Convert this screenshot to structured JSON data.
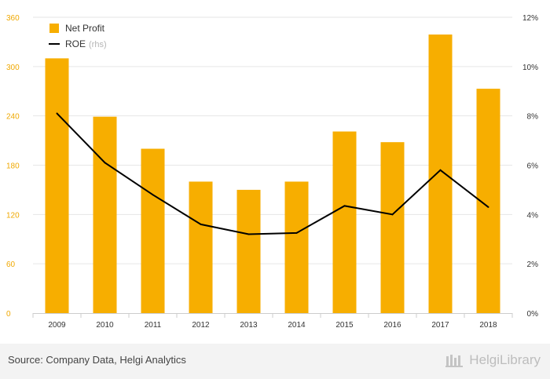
{
  "chart_data": {
    "type": "bar",
    "categories": [
      "2009",
      "2010",
      "2011",
      "2012",
      "2013",
      "2014",
      "2015",
      "2016",
      "2017",
      "2018"
    ],
    "series": [
      {
        "name": "Net Profit",
        "type": "bar",
        "axis": "left",
        "color": "#f7ae00",
        "values": [
          310,
          239,
          200,
          160,
          150,
          160,
          221,
          208,
          339,
          273
        ]
      },
      {
        "name": "ROE",
        "name_suffix": "(rhs)",
        "type": "line",
        "axis": "right",
        "color": "#000000",
        "values": [
          8.1,
          6.1,
          4.8,
          3.6,
          3.2,
          3.25,
          4.35,
          4.0,
          5.8,
          4.3
        ]
      }
    ],
    "y_left": {
      "ylim": [
        0,
        360
      ],
      "ticks": [
        0,
        60,
        120,
        180,
        240,
        300,
        360
      ]
    },
    "y_right": {
      "ylim": [
        0,
        12
      ],
      "ticks": [
        "0%",
        "2%",
        "4%",
        "6%",
        "8%",
        "10%",
        "12%"
      ]
    },
    "grid": true,
    "legend_position": "top-left"
  },
  "footer": {
    "source": "Source: Company Data, Helgi Analytics",
    "brand": "HelgiLibrary"
  },
  "colors": {
    "bar": "#f7ae00",
    "line": "#000000",
    "left_ticks": "#f0a800",
    "footer_bg": "#f3f3f3"
  }
}
